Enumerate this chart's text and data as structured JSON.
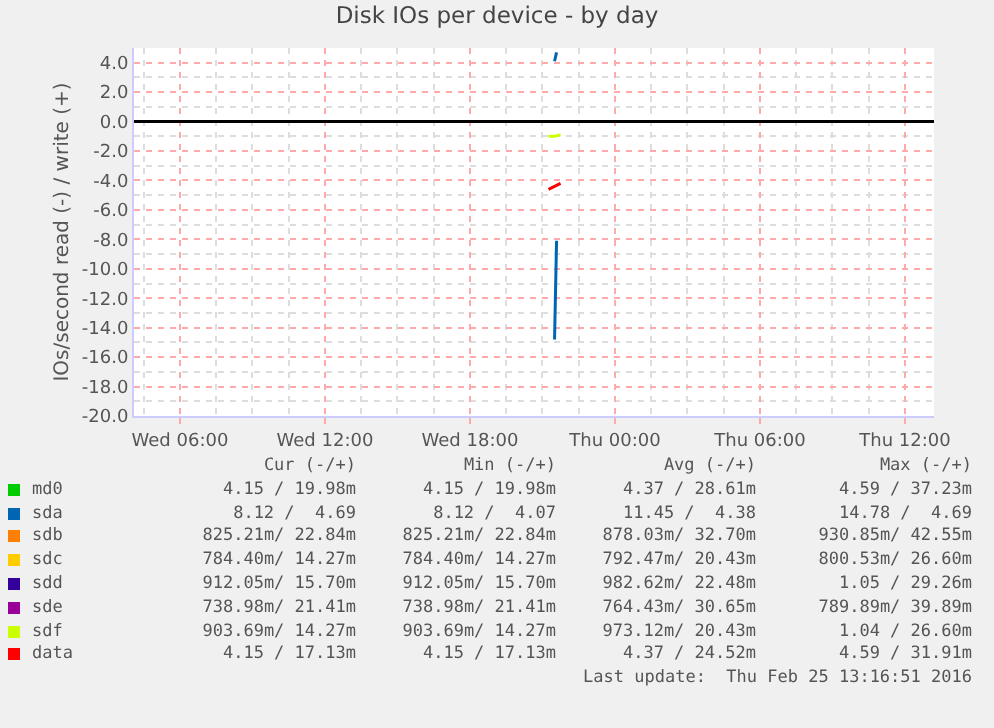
{
  "chart_data": {
    "type": "line",
    "title": "Disk IOs per device - by day",
    "ylabel": "IOs/second read (-) / write (+)",
    "x": [
      "2016-02-24T21:30",
      "2016-02-24T21:35"
    ],
    "series": [
      {
        "name": "md0",
        "color": "#00cc00",
        "values": [
          null,
          null
        ]
      },
      {
        "name": "sda",
        "color": "#0066b3",
        "values": [
          -14.8,
          -8.1
        ]
      },
      {
        "name": "sdb",
        "color": "#ff8000",
        "values": [
          null,
          null
        ]
      },
      {
        "name": "sdc",
        "color": "#ffcc00",
        "values": [
          null,
          null
        ]
      },
      {
        "name": "sdd",
        "color": "#330099",
        "values": [
          null,
          null
        ]
      },
      {
        "name": "sde",
        "color": "#990099",
        "values": [
          null,
          null
        ]
      },
      {
        "name": "sdf",
        "color": "#ccff00",
        "x": [
          "2016-02-24T21:15",
          "2016-02-24T21:30",
          "2016-02-24T21:45"
        ],
        "values": [
          -1.0,
          -1.0,
          -0.9
        ]
      },
      {
        "name": "data",
        "color": "#ff0000",
        "x": [
          "2016-02-24T21:15",
          "2016-02-24T21:30",
          "2016-02-24T21:45"
        ],
        "values": [
          -4.6,
          -4.4,
          -4.2
        ]
      },
      {
        "color": "#0066b3",
        "values": [
          4.1,
          4.7
        ]
      }
    ],
    "xlim": [
      "2016-02-24T04:06",
      "2016-02-25T13:12"
    ],
    "xticks": [
      {
        "value": "2016-02-24T06:00",
        "label": "Wed 06:00"
      },
      {
        "value": "2016-02-24T12:00",
        "label": "Wed 12:00"
      },
      {
        "value": "2016-02-24T18:00",
        "label": "Wed 18:00"
      },
      {
        "value": "2016-02-25T00:00",
        "label": "Thu 00:00"
      },
      {
        "value": "2016-02-25T06:00",
        "label": "Thu 06:00"
      },
      {
        "value": "2016-02-25T12:00",
        "label": "Thu 12:00"
      }
    ],
    "ylim": [
      -20,
      5
    ],
    "yticks": [
      {
        "value": -20,
        "label": "-20.0"
      },
      {
        "value": -18,
        "label": "-18.0"
      },
      {
        "value": -16,
        "label": "-16.0"
      },
      {
        "value": -14,
        "label": "-14.0"
      },
      {
        "value": -12,
        "label": "-12.0"
      },
      {
        "value": -10,
        "label": "-10.0"
      },
      {
        "value": -8,
        "label": "-8.0"
      },
      {
        "value": -6,
        "label": "-6.0"
      },
      {
        "value": -4,
        "label": "-4.0"
      },
      {
        "value": -2,
        "label": "-2.0"
      },
      {
        "value": 0,
        "label": "0.0"
      },
      {
        "value": 2,
        "label": "2.0"
      },
      {
        "value": 4,
        "label": "4.0"
      }
    ],
    "grid": true,
    "legend": "bottom",
    "ref_lines": [
      {
        "axis": "y",
        "value": 0,
        "color": "#000000"
      }
    ],
    "annotations": [
      "Cur (-/+)",
      "Min (-/+)",
      "Avg (-/+)",
      "Max (-/+)",
      "4.15 / 19.98m",
      "4.15 / 19.98m",
      "4.37 / 28.61m",
      "4.59 / 37.23m",
      "8.12 /  4.69",
      "8.12 /  4.07",
      "11.45 /  4.38",
      "14.78 /  4.69",
      "825.21m/ 22.84m",
      "825.21m/ 22.84m",
      "878.03m/ 32.70m",
      "930.85m/ 42.55m",
      "784.40m/ 14.27m",
      "784.40m/ 14.27m",
      "792.47m/ 20.43m",
      "800.53m/ 26.60m",
      "912.05m/ 15.70m",
      "912.05m/ 15.70m",
      "982.62m/ 22.48m",
      "1.05 / 29.26m",
      "738.98m/ 21.41m",
      "738.98m/ 21.41m",
      "764.43m/ 30.65m",
      "789.89m/ 39.89m",
      "903.69m/ 14.27m",
      "903.69m/ 14.27m",
      "973.12m/ 20.43m",
      "1.04 / 26.60m",
      "4.15 / 17.13m",
      "4.15 / 17.13m",
      "4.37 / 24.52m",
      "4.59 / 31.91m",
      "Last update:  Thu Feb 25 13:16:51 2016"
    ]
  }
}
